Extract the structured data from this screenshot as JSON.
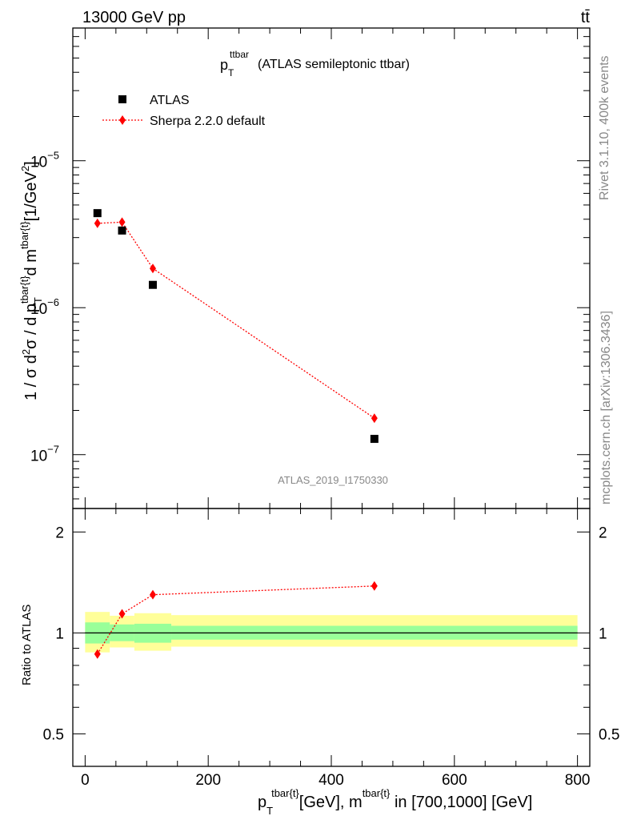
{
  "header": {
    "left": "13000 GeV pp",
    "right": "tt̄"
  },
  "side_labels": {
    "rivet": "Rivet 3.1.10,  400k events",
    "mcplots": "mcplots.cern.ch [arXiv:1306.3436]"
  },
  "chart_data": [
    {
      "type": "scatter",
      "title": "p_T^ttbar (ATLAS semileptonic ttbar)",
      "title_main": "p",
      "title_sub": "T",
      "title_sup": "ttbar",
      "title_rest": " (ATLAS semileptonic ttbar)",
      "watermark": "ATLAS_2019_I1750330",
      "ylabel": "1 / σ d²σ / d p_T^tbar{t} d m^tbar{t} [1/GeV²]",
      "ylabel_parts": {
        "a": "1 / σ d",
        "b": "2",
        "c": "σ / d p",
        "d": "T",
        "e": "tbar{t}",
        "f": "d m",
        "g": "tbar{t}",
        "h": "[1/GeV",
        "i": "2",
        "j": "]"
      },
      "yscale": "log",
      "xlim": [
        -20,
        820
      ],
      "ylim": [
        4.3e-08,
        8e-05
      ],
      "yticks": [
        {
          "value": 1e-07,
          "label_base": "10",
          "label_exp": "−7"
        },
        {
          "value": 1e-06,
          "label_base": "10",
          "label_exp": "−6"
        },
        {
          "value": 1e-05,
          "label_base": "10",
          "label_exp": "−5"
        }
      ],
      "legend_position": "top-left",
      "series": [
        {
          "name": "ATLAS",
          "marker": "square",
          "color": "#000000",
          "x": [
            20,
            60,
            110,
            470
          ],
          "y": [
            4.4e-06,
            3.35e-06,
            1.43e-06,
            1.28e-07
          ]
        },
        {
          "name": "Sherpa 2.2.0 default",
          "marker": "diamond",
          "linestyle": "dotted",
          "color": "#ff0000",
          "x": [
            20,
            60,
            110,
            470
          ],
          "y": [
            3.75e-06,
            3.82e-06,
            1.85e-06,
            1.77e-07
          ]
        }
      ]
    },
    {
      "type": "line",
      "ylabel": "Ratio to ATLAS",
      "xlabel": "p_T^tbar{t} [GeV], m^tbar{t} in [700,1000] [GeV]",
      "xlabel_parts": {
        "a": "p",
        "b": "T",
        "c": "tbar{t}",
        "d": "[GeV], m",
        "e": "tbar{t}",
        "f": " in [700,1000] [GeV]"
      },
      "xlim": [
        -20,
        820
      ],
      "ylim": [
        0.4,
        2.35
      ],
      "xticks": [
        {
          "value": 0,
          "label": "0"
        },
        {
          "value": 200,
          "label": "200"
        },
        {
          "value": 400,
          "label": "400"
        },
        {
          "value": 600,
          "label": "600"
        },
        {
          "value": 800,
          "label": "800"
        }
      ],
      "yticks": [
        {
          "value": 0.5,
          "label": "0.5"
        },
        {
          "value": 1,
          "label": "1"
        },
        {
          "value": 2,
          "label": "2"
        }
      ],
      "bands": [
        {
          "x0": 0,
          "x1": 40,
          "yellow": [
            0.875,
            1.155
          ],
          "green": [
            0.93,
            1.075
          ]
        },
        {
          "x0": 40,
          "x1": 80,
          "yellow": [
            0.905,
            1.125
          ],
          "green": [
            0.945,
            1.06
          ]
        },
        {
          "x0": 80,
          "x1": 140,
          "yellow": [
            0.885,
            1.145
          ],
          "green": [
            0.935,
            1.065
          ]
        },
        {
          "x0": 140,
          "x1": 800,
          "yellow": [
            0.91,
            1.13
          ],
          "green": [
            0.955,
            1.05
          ]
        }
      ],
      "series": [
        {
          "name": "Sherpa 2.2.0 default",
          "color": "#ff0000",
          "x": [
            20,
            60,
            110,
            470
          ],
          "y": [
            0.865,
            1.14,
            1.3,
            1.38
          ]
        }
      ]
    }
  ]
}
